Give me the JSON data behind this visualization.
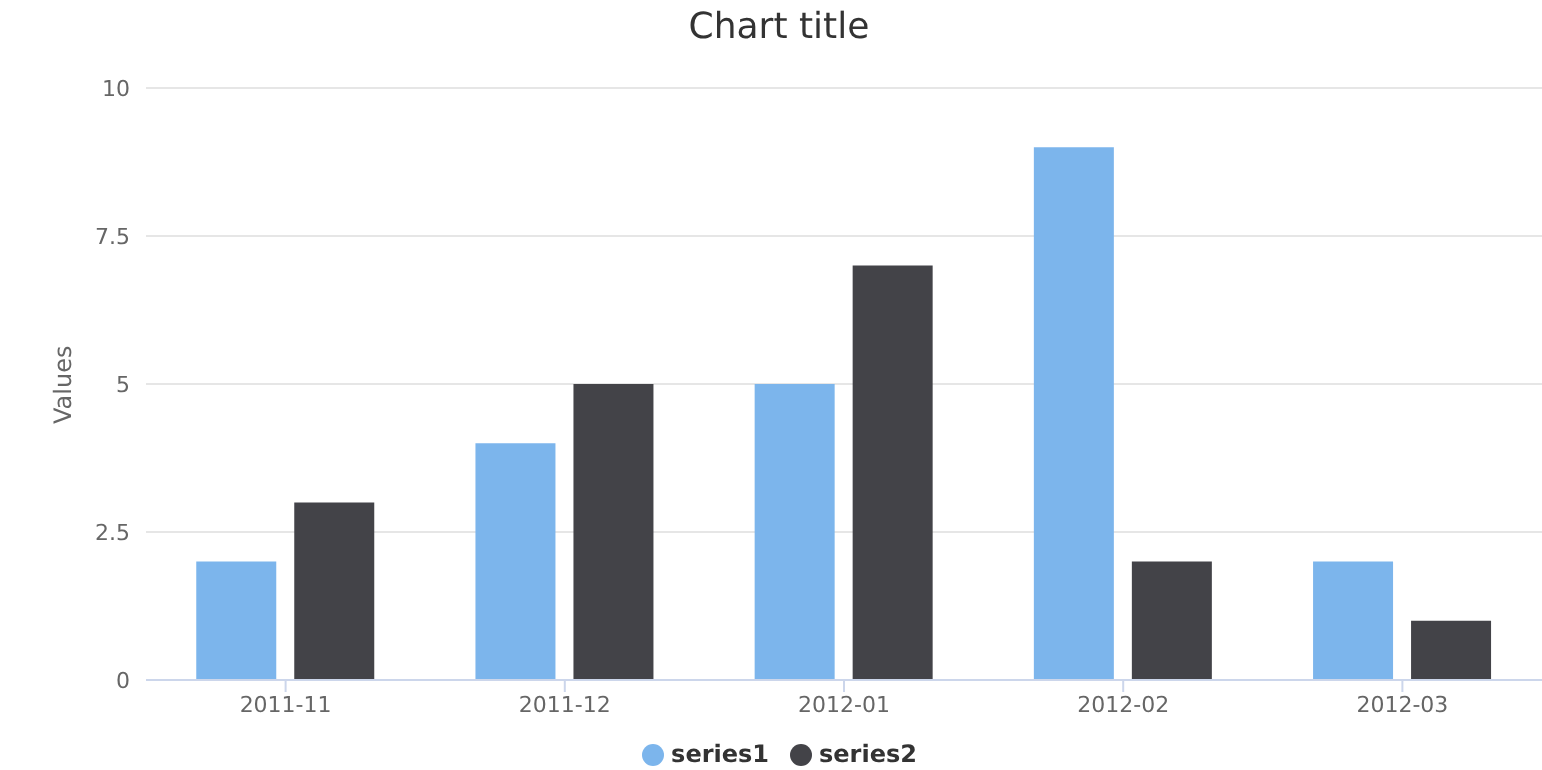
{
  "chart_data": {
    "type": "bar",
    "title": "Chart title",
    "ylabel": "Values",
    "categories": [
      "2011-11",
      "2011-12",
      "2012-01",
      "2012-02",
      "2012-03"
    ],
    "series": [
      {
        "name": "series1",
        "color": "#7cb5ec",
        "values": [
          2,
          4,
          5,
          9,
          2
        ]
      },
      {
        "name": "series2",
        "color": "#434348",
        "values": [
          3,
          5,
          7,
          2,
          1
        ]
      }
    ],
    "ylim": [
      0,
      10
    ],
    "yticks": [
      0,
      {
        "value": 2.5,
        "label": "2.5"
      },
      5,
      {
        "value": 7.5,
        "label": "7.5"
      },
      10
    ],
    "grid": "y",
    "legend": "bottom"
  }
}
